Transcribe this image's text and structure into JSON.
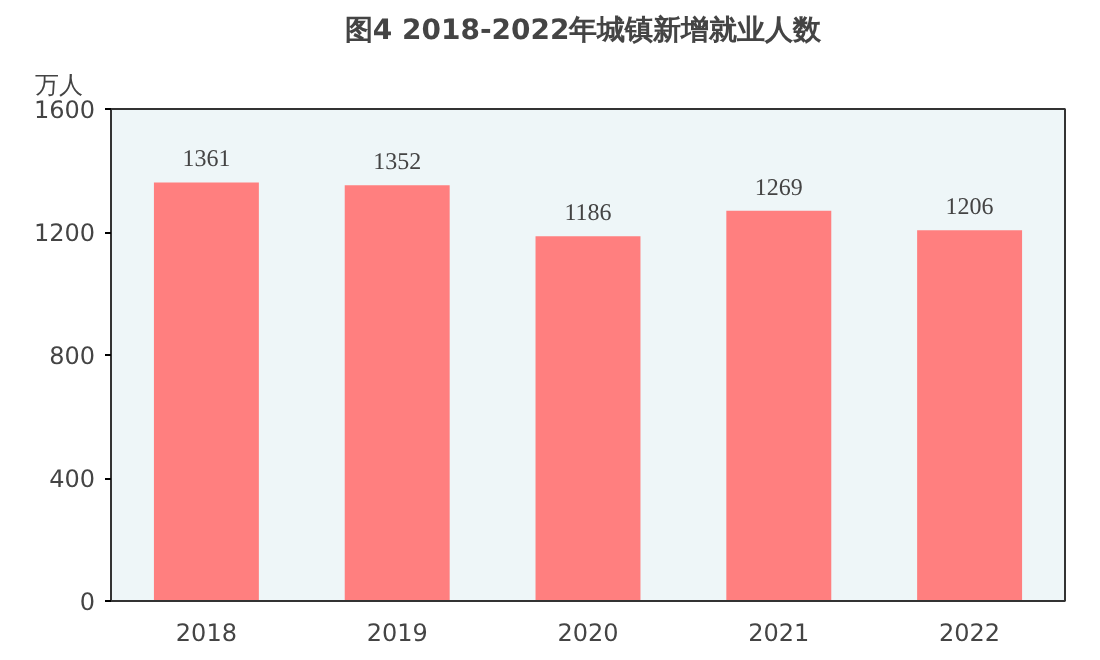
{
  "chart_data": {
    "type": "bar",
    "title": "图4  2018-2022年城镇新增就业人数",
    "ylabel": "万人",
    "categories": [
      "2018",
      "2019",
      "2020",
      "2021",
      "2022"
    ],
    "values": [
      1361,
      1352,
      1186,
      1269,
      1206
    ],
    "color": "#ff7f7f",
    "ylim": [
      0,
      1600
    ],
    "yticks": [
      0,
      400,
      800,
      1200,
      1600
    ],
    "grid": false,
    "data_labels": true
  }
}
